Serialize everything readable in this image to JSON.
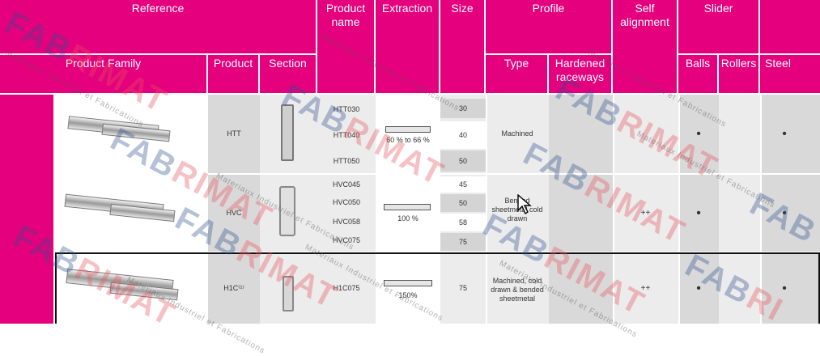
{
  "headers": {
    "reference": "Reference",
    "product_name": "Product name",
    "extraction": "Extraction",
    "size": "Size",
    "profile": "Profile",
    "self_alignment": "Self alignment",
    "slider": "Slider",
    "product_family": "Product Family",
    "product": "Product",
    "section": "Section",
    "type": "Type",
    "hardened_raceways": "Hardened raceways",
    "balls": "Balls",
    "rollers": "Rollers",
    "steel": "Steel"
  },
  "rows": [
    {
      "product": "HTT",
      "names": [
        "HTT030",
        "HTT040",
        "HTT050"
      ],
      "extraction": "60 % to 66 %",
      "sizes": [
        "30",
        "40",
        "50"
      ],
      "type": "Machined",
      "self_alignment": "",
      "balls": "•",
      "steel": "•"
    },
    {
      "product": "HVC",
      "names": [
        "HVC045",
        "HVC050",
        "HVC058",
        "HVC075"
      ],
      "extraction": "100 %",
      "sizes": [
        "45",
        "50",
        "58",
        "75"
      ],
      "type": "Bended sheetmetal cold drawn",
      "self_alignment": "++",
      "balls": "•",
      "steel": "•"
    },
    {
      "product": "H1C⁽¹⁾",
      "names": [
        "H1C075"
      ],
      "extraction": "150%",
      "sizes": [
        "75"
      ],
      "type": "Machined, cold drawn & bended sheetmetal",
      "self_alignment": "++",
      "balls": "•",
      "steel": "•"
    }
  ],
  "watermark": {
    "brand_a": "FAB",
    "brand_b": "RI",
    "brand_c": "MAT",
    "tagline": "Materiaux Industriel et Fabrications"
  }
}
